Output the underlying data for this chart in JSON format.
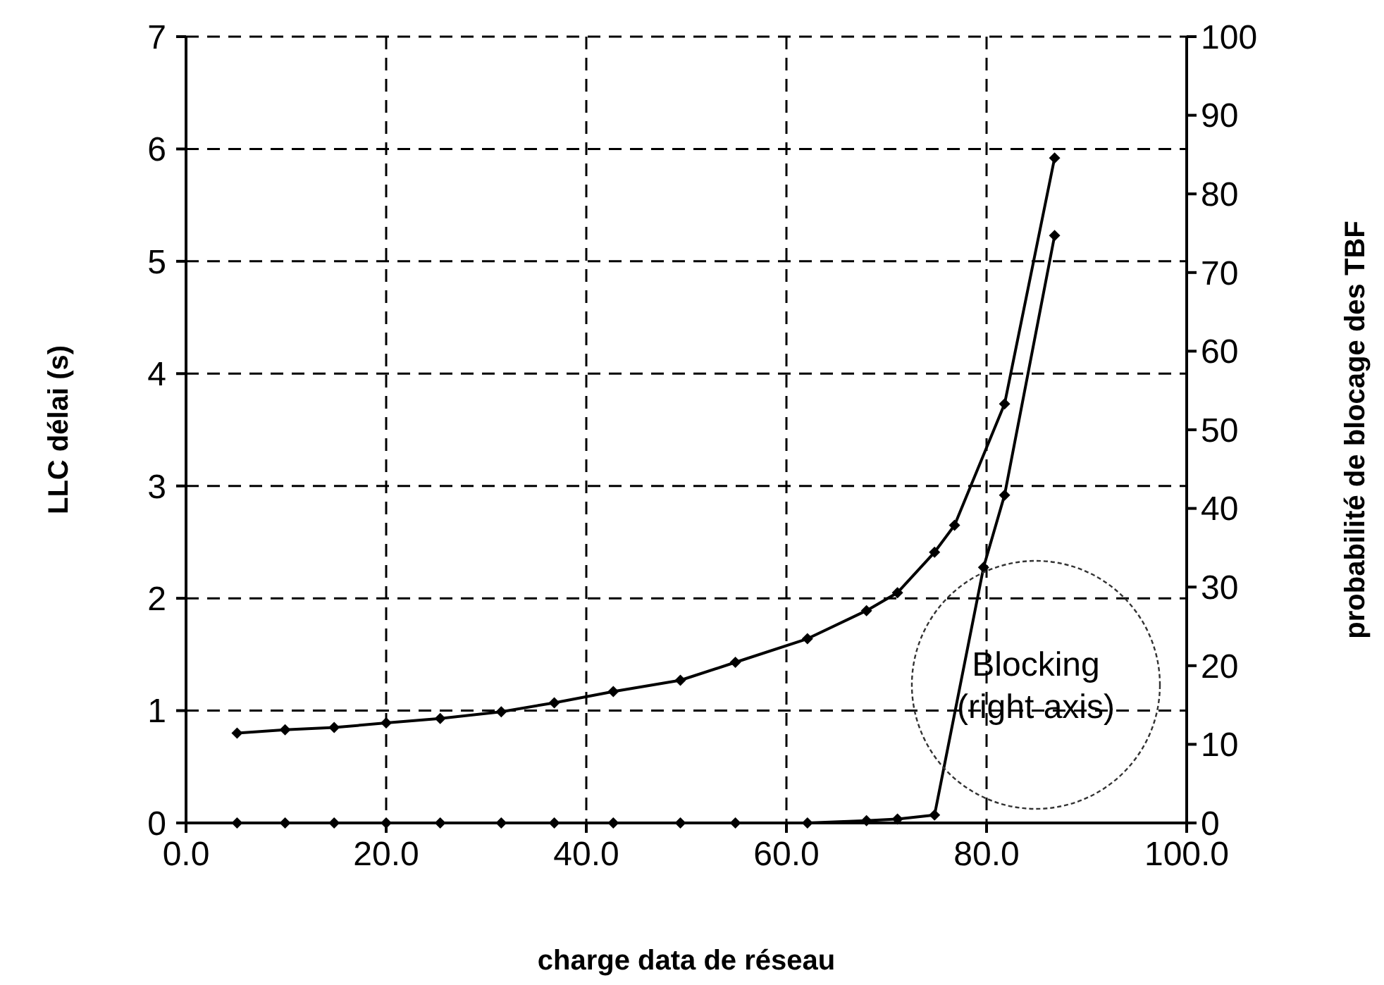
{
  "chart_data": {
    "type": "line",
    "xlabel": "charge data de réseau",
    "ylabel": "LLC délai (s)",
    "y2label": "probabilité de blocage des TBF",
    "xlim": [
      0,
      100
    ],
    "xticks": [
      {
        "value": 0,
        "label": "0.0"
      },
      {
        "value": 20,
        "label": "20.0"
      },
      {
        "value": 40,
        "label": "40.0"
      },
      {
        "value": 60,
        "label": "60.0"
      },
      {
        "value": 80,
        "label": "80.0"
      },
      {
        "value": 100,
        "label": "100.0"
      }
    ],
    "ylim": [
      0,
      7
    ],
    "yticks": [
      0,
      1,
      2,
      3,
      4,
      5,
      6,
      7
    ],
    "y2lim": [
      0,
      100
    ],
    "y2ticks": [
      0,
      10,
      20,
      30,
      40,
      50,
      60,
      70,
      80,
      90,
      100
    ],
    "grid": true,
    "marker": "diamond",
    "line_style": "solid",
    "series": [
      {
        "color": "#000000",
        "x": [
          5.1,
          9.9,
          14.8,
          20,
          25.4,
          31.5,
          36.8,
          42.7,
          49.4,
          54.9,
          62.1,
          68,
          71.1,
          74.8,
          76.8,
          81.8,
          86.8
        ],
        "values": [
          0.8,
          0.83,
          0.85,
          0.89,
          0.93,
          0.99,
          1.07,
          1.17,
          1.27,
          1.43,
          1.64,
          1.89,
          2.05,
          2.41,
          2.65,
          3.73,
          5.92
        ]
      },
      {
        "color": "#000000",
        "axis": "y2",
        "x": [
          5.1,
          9.9,
          14.8,
          20,
          25.4,
          31.5,
          36.8,
          42.7,
          49.4,
          54.9,
          62.1,
          68,
          71.1,
          74.8,
          79.7,
          81.8,
          86.8
        ],
        "values": [
          0,
          0,
          0,
          0,
          0,
          0,
          0,
          0,
          0,
          0,
          0,
          0.3,
          0.5,
          1,
          32.5,
          41.7,
          74.7
        ]
      }
    ],
    "annotations": [
      "Blocking\n(right axis)"
    ]
  }
}
